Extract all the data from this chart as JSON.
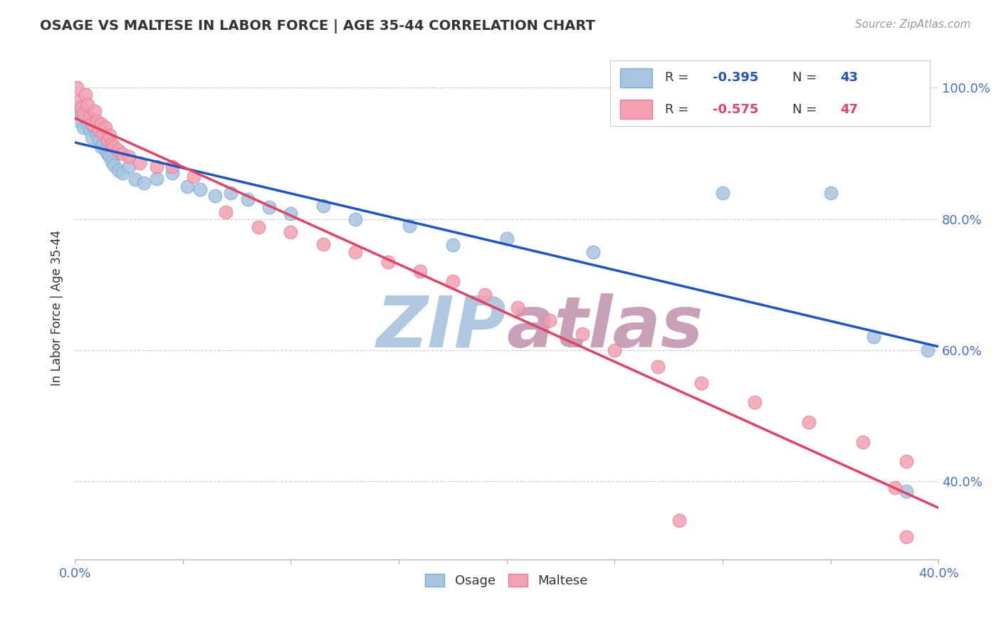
{
  "title": "OSAGE VS MALTESE IN LABOR FORCE | AGE 35-44 CORRELATION CHART",
  "source_text": "Source: ZipAtlas.com",
  "ylabel": "In Labor Force | Age 35-44",
  "xlim": [
    0.0,
    0.4
  ],
  "ylim": [
    0.28,
    1.05
  ],
  "yticks": [
    0.4,
    0.6,
    0.8,
    1.0
  ],
  "yticklabels": [
    "40.0%",
    "60.0%",
    "80.0%",
    "100.0%"
  ],
  "osage_R": -0.395,
  "osage_N": 43,
  "maltese_R": -0.575,
  "maltese_N": 47,
  "osage_color": "#a8c4e0",
  "maltese_color": "#f4a0b0",
  "osage_edge_color": "#7aafd4",
  "maltese_edge_color": "#e080a0",
  "osage_line_color": "#2255bb",
  "maltese_line_color": "#dd4466",
  "watermark": "ZIPatlas",
  "watermark_color_zip": "#b0c8e0",
  "watermark_color_atlas": "#c8a0b8",
  "background_color": "#ffffff",
  "osage_x": [
    0.001,
    0.002,
    0.003,
    0.004,
    0.005,
    0.006,
    0.007,
    0.008,
    0.009,
    0.01,
    0.011,
    0.012,
    0.013,
    0.014,
    0.015,
    0.016,
    0.017,
    0.018,
    0.02,
    0.022,
    0.025,
    0.028,
    0.032,
    0.038,
    0.045,
    0.052,
    0.058,
    0.065,
    0.072,
    0.08,
    0.09,
    0.1,
    0.115,
    0.13,
    0.155,
    0.175,
    0.2,
    0.24,
    0.3,
    0.35,
    0.37,
    0.385,
    0.395
  ],
  "osage_y": [
    0.965,
    0.95,
    0.96,
    0.94,
    0.955,
    0.945,
    0.935,
    0.925,
    0.94,
    0.93,
    0.92,
    0.91,
    0.915,
    0.905,
    0.9,
    0.895,
    0.888,
    0.882,
    0.875,
    0.87,
    0.88,
    0.86,
    0.855,
    0.862,
    0.87,
    0.85,
    0.845,
    0.835,
    0.84,
    0.83,
    0.818,
    0.808,
    0.82,
    0.8,
    0.79,
    0.76,
    0.77,
    0.75,
    0.84,
    0.84,
    0.62,
    0.385,
    0.6
  ],
  "maltese_x": [
    0.001,
    0.002,
    0.003,
    0.004,
    0.005,
    0.006,
    0.007,
    0.008,
    0.009,
    0.01,
    0.011,
    0.012,
    0.013,
    0.014,
    0.015,
    0.016,
    0.017,
    0.018,
    0.02,
    0.022,
    0.025,
    0.03,
    0.038,
    0.045,
    0.055,
    0.07,
    0.085,
    0.1,
    0.115,
    0.13,
    0.145,
    0.16,
    0.175,
    0.19,
    0.205,
    0.22,
    0.235,
    0.25,
    0.27,
    0.29,
    0.315,
    0.34,
    0.365,
    0.385,
    0.28,
    0.38,
    0.385
  ],
  "maltese_y": [
    1.0,
    0.98,
    0.97,
    0.96,
    0.99,
    0.975,
    0.955,
    0.945,
    0.965,
    0.95,
    0.935,
    0.945,
    0.93,
    0.94,
    0.92,
    0.928,
    0.915,
    0.91,
    0.905,
    0.9,
    0.895,
    0.885,
    0.88,
    0.88,
    0.865,
    0.81,
    0.788,
    0.78,
    0.762,
    0.75,
    0.735,
    0.72,
    0.705,
    0.685,
    0.665,
    0.645,
    0.625,
    0.6,
    0.575,
    0.55,
    0.52,
    0.49,
    0.46,
    0.43,
    0.34,
    0.39,
    0.315
  ]
}
